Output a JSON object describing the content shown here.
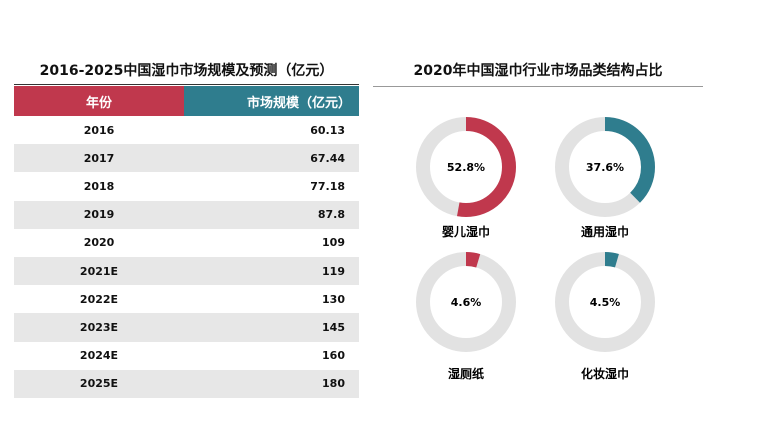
{
  "table_title": "2016-2025中国湿巾市场规模及预测（亿元）",
  "headers": {
    "year": "年份",
    "size": "市场规模（亿元）"
  },
  "rows": [
    {
      "year": "2016",
      "value": "60.13"
    },
    {
      "year": "2017",
      "value": "67.44"
    },
    {
      "year": "2018",
      "value": "77.18"
    },
    {
      "year": "2019",
      "value": "87.8"
    },
    {
      "year": "2020",
      "value": "109"
    },
    {
      "year": "2021E",
      "value": "119"
    },
    {
      "year": "2022E",
      "value": "130"
    },
    {
      "year": "2023E",
      "value": "145"
    },
    {
      "year": "2024E",
      "value": "160"
    },
    {
      "year": "2025E",
      "value": "180"
    }
  ],
  "donut_title": "2020年中国湿巾行业市场品类结构占比",
  "chart_data": [
    {
      "type": "table",
      "title": "2016-2025中国湿巾市场规模及预测（亿元）",
      "categories": [
        "2016",
        "2017",
        "2018",
        "2019",
        "2020",
        "2021E",
        "2022E",
        "2023E",
        "2024E",
        "2025E"
      ],
      "series": [
        {
          "name": "市场规模（亿元）",
          "values": [
            60.13,
            67.44,
            77.18,
            87.8,
            109,
            119,
            130,
            145,
            160,
            180
          ]
        }
      ]
    },
    {
      "type": "pie",
      "title": "2020年中国湿巾行业市场品类结构占比",
      "slices": [
        {
          "label": "婴儿湿巾",
          "value": 52.8,
          "display": "52.8%",
          "color": "#c0384d"
        },
        {
          "label": "通用湿巾",
          "value": 37.6,
          "display": "37.6%",
          "color": "#2f7d8e"
        },
        {
          "label": "湿厕纸",
          "value": 4.6,
          "display": "4.6%",
          "color": "#c0384d"
        },
        {
          "label": "化妆湿巾",
          "value": 4.5,
          "display": "4.5%",
          "color": "#2f7d8e"
        }
      ],
      "track_color": "#e2e2e2"
    }
  ]
}
